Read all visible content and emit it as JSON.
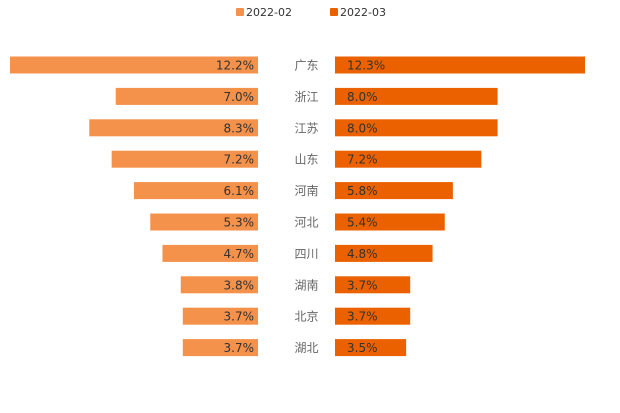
{
  "chart_data": {
    "type": "bar",
    "orientation": "horizontal-butterfly",
    "title": "",
    "xlabel": "",
    "ylabel": "",
    "value_format": "percent",
    "categories": [
      "广东",
      "浙江",
      "江苏",
      "山东",
      "河南",
      "河北",
      "四川",
      "湖南",
      "北京",
      "湖北"
    ],
    "series": [
      {
        "name": "2022-02",
        "color": "#F4914A",
        "side": "left",
        "values": [
          12.2,
          7.0,
          8.3,
          7.2,
          6.1,
          5.3,
          4.7,
          3.8,
          3.7,
          3.7
        ],
        "labels": [
          "12.2%",
          "7.0%",
          "8.3%",
          "7.2%",
          "6.1%",
          "5.3%",
          "4.7%",
          "3.8%",
          "3.7%",
          "3.7%"
        ]
      },
      {
        "name": "2022-03",
        "color": "#EB6100",
        "side": "right",
        "values": [
          12.3,
          8.0,
          8.0,
          7.2,
          5.8,
          5.4,
          4.8,
          3.7,
          3.7,
          3.5
        ],
        "labels": [
          "12.3%",
          "8.0%",
          "8.0%",
          "7.2%",
          "5.8%",
          "5.4%",
          "4.8%",
          "3.7%",
          "3.7%",
          "3.5%"
        ]
      }
    ],
    "xlim": [
      0,
      12.3
    ],
    "grid": false,
    "legend_position": "top-center"
  }
}
